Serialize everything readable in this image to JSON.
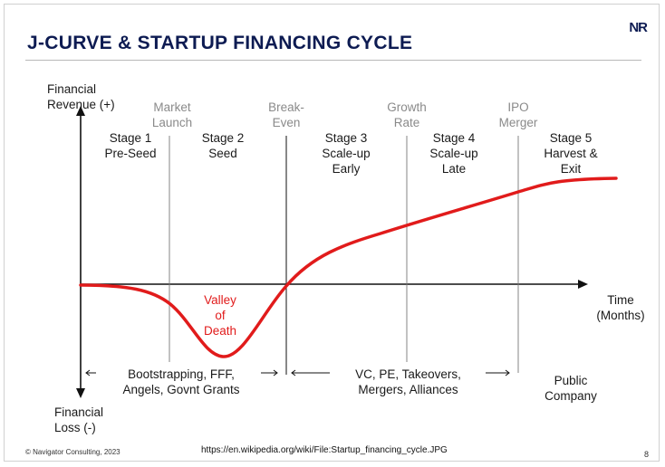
{
  "title": "J-CURVE & STARTUP FINANCING CYCLE",
  "logo_text": "NR",
  "axes": {
    "y_top_label": "Financial\nRevenue (+)",
    "y_bottom_label": "Financial\nLoss (-)",
    "x_label": "Time\n(Months)"
  },
  "milestones": [
    {
      "label": "Market\nLaunch"
    },
    {
      "label": "Break-\nEven"
    },
    {
      "label": "Growth\nRate"
    },
    {
      "label": "IPO\nMerger"
    }
  ],
  "stages": [
    {
      "label": "Stage 1\nPre-Seed"
    },
    {
      "label": "Stage 2\nSeed"
    },
    {
      "label": "Stage 3\nScale-up\nEarly"
    },
    {
      "label": "Stage 4\nScale-up\nLate"
    },
    {
      "label": "Stage 5\nHarvest &\nExit"
    }
  ],
  "valley_label": "Valley\nof\nDeath",
  "funding": [
    {
      "label": "Bootstrapping, FFF,\nAngels, Govnt Grants"
    },
    {
      "label": "VC, PE, Takeovers,\nMergers, Alliances"
    },
    {
      "label": "Public\nCompany"
    }
  ],
  "footer": {
    "copyright": "© Navigator Consulting, 2023",
    "source": "https://en.wikipedia.org/wiki/File:Startup_financing_cycle.JPG",
    "page_number": "8"
  },
  "colors": {
    "curve": "#e11b1b",
    "title": "#0d1b52",
    "milestone_text": "#8a8a8a"
  }
}
